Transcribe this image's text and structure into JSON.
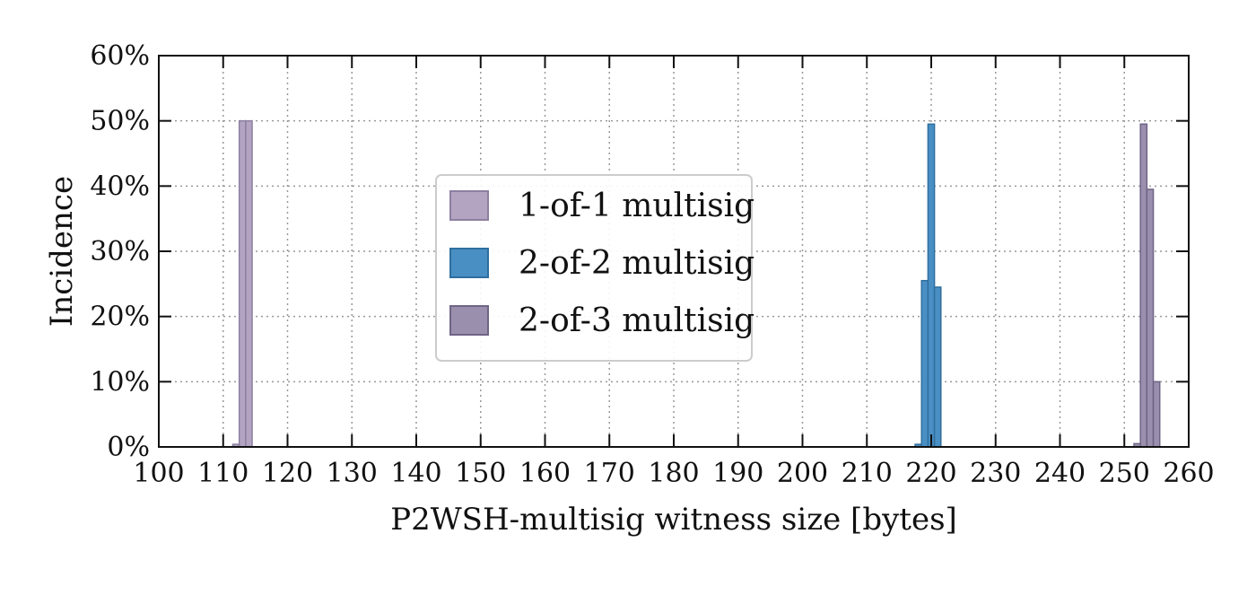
{
  "chart_data": {
    "type": "bar",
    "title": "",
    "xlabel": "P2WSH-multisig witness size [bytes]",
    "ylabel": "Incidence",
    "xlim": [
      100,
      260
    ],
    "ylim": [
      0,
      60
    ],
    "x_ticks": [
      100,
      110,
      120,
      130,
      140,
      150,
      160,
      170,
      180,
      190,
      200,
      210,
      220,
      230,
      240,
      250,
      260
    ],
    "y_ticks": [
      0,
      10,
      20,
      30,
      40,
      50,
      60
    ],
    "y_tick_suffix": "%",
    "grid": true,
    "legend_position": "center-left",
    "series": [
      {
        "name": "1-of-1 multisig",
        "color": "#b3a5c2",
        "edge_color": "#8d7fa0",
        "bins": [
          {
            "x": 112,
            "value": 0.4
          },
          {
            "x": 113,
            "value": 50
          },
          {
            "x": 114,
            "value": 50
          }
        ]
      },
      {
        "name": "2-of-2 multisig",
        "color": "#4a8fc4",
        "edge_color": "#2f6e9e",
        "bins": [
          {
            "x": 218,
            "value": 0.4
          },
          {
            "x": 219,
            "value": 25.5
          },
          {
            "x": 220,
            "value": 49.5
          },
          {
            "x": 221,
            "value": 24.5
          }
        ]
      },
      {
        "name": "2-of-3 multisig",
        "color": "#9a8fac",
        "edge_color": "#6f6486",
        "bins": [
          {
            "x": 252,
            "value": 0.5
          },
          {
            "x": 253,
            "value": 49.5
          },
          {
            "x": 254,
            "value": 39.5
          },
          {
            "x": 255,
            "value": 10
          }
        ]
      }
    ]
  }
}
